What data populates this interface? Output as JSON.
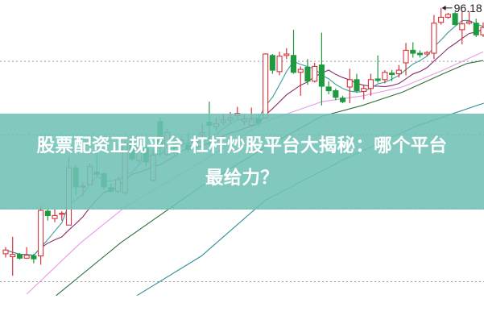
{
  "chart_data": {
    "type": "candlestick",
    "title": "",
    "high_label": "96.18",
    "grid": true,
    "grid_levels": [
      90,
      81.5,
      73,
      64.5
    ],
    "ylim": [
      59.6,
      97.1
    ],
    "colors": {
      "up": "#d8343d",
      "down": "#1f9a3e",
      "ma5": "#3a9b9a",
      "ma10": "#8a2a6e",
      "ma20": "#e79be6",
      "ma30": "#2f6e3a",
      "ma60": "#2c8f95",
      "grid": "#999999"
    },
    "candles": [
      [
        67.73,
        68.16,
        68.5,
        67.31
      ],
      [
        67.39,
        67.65,
        69.69,
        65.18
      ],
      [
        67.65,
        67.22,
        67.82,
        67.06
      ],
      [
        67.22,
        67.56,
        68.5,
        67.14
      ],
      [
        67.48,
        67.14,
        67.73,
        66.63
      ],
      [
        67.48,
        72.75,
        73.34,
        66.46
      ],
      [
        72.66,
        72.15,
        72.92,
        71.56
      ],
      [
        71.81,
        72.15,
        72.92,
        71.39
      ],
      [
        72.33,
        72.41,
        72.66,
        71.56
      ],
      [
        71.05,
        77.68,
        78.95,
        71.05
      ],
      [
        77.68,
        75.47,
        78.02,
        74.45
      ],
      [
        75.47,
        75.56,
        75.98,
        74.28
      ],
      [
        75.72,
        77.85,
        78.19,
        75.64
      ],
      [
        77.17,
        76.92,
        80.65,
        76.66
      ],
      [
        77.0,
        75.47,
        77.17,
        75.13
      ],
      [
        75.38,
        74.96,
        75.81,
        74.79
      ],
      [
        74.96,
        76.32,
        76.66,
        74.62
      ],
      [
        74.79,
        80.48,
        80.74,
        74.53
      ],
      [
        80.91,
        78.7,
        81.25,
        78.36
      ],
      [
        78.53,
        79.97,
        80.4,
        78.19
      ],
      [
        79.97,
        78.36,
        80.23,
        77.85
      ],
      [
        76.24,
        79.13,
        79.8,
        76.06
      ],
      [
        83.04,
        80.06,
        83.46,
        79.04
      ],
      [
        79.21,
        81.76,
        82.18,
        79.04
      ],
      [
        80.65,
        80.14,
        80.91,
        79.21
      ],
      [
        80.4,
        80.91,
        81.33,
        80.06
      ],
      [
        80.31,
        79.8,
        81.76,
        79.47
      ],
      [
        80.23,
        80.74,
        81.08,
        79.89
      ],
      [
        81.5,
        81.76,
        82.78,
        80.91
      ],
      [
        82.95,
        82.61,
        85.33,
        80.06
      ],
      [
        82.44,
        82.78,
        83.46,
        81.93
      ],
      [
        82.95,
        83.2,
        83.88,
        82.61
      ],
      [
        83.2,
        83.46,
        84.14,
        82.78
      ],
      [
        83.71,
        83.97,
        84.73,
        83.29
      ],
      [
        83.04,
        83.29,
        83.8,
        82.61
      ],
      [
        82.61,
        83.2,
        84.65,
        82.44
      ],
      [
        83.37,
        82.87,
        83.88,
        82.61
      ],
      [
        83.46,
        90.85,
        90.94,
        83.29
      ],
      [
        90.68,
        88.98,
        90.85,
        88.56
      ],
      [
        88.81,
        90.6,
        91.11,
        88.39
      ],
      [
        90.68,
        90.85,
        91.53,
        90.26
      ],
      [
        90.68,
        88.73,
        93.66,
        88.56
      ],
      [
        88.73,
        89.07,
        89.41,
        86.01
      ],
      [
        89.32,
        87.71,
        90.26,
        87.28
      ],
      [
        87.71,
        89.41,
        89.83,
        87.54
      ],
      [
        89.58,
        87.12,
        93.32,
        84.9
      ],
      [
        87.03,
        86.6,
        87.71,
        86.18
      ],
      [
        86.6,
        85.84,
        86.86,
        85.5
      ],
      [
        85.75,
        85.33,
        86.01,
        85.16
      ],
      [
        87.03,
        87.88,
        89.15,
        85.16
      ],
      [
        87.88,
        86.6,
        88.56,
        86.35
      ],
      [
        86.52,
        86.86,
        87.28,
        85.58
      ],
      [
        86.86,
        87.88,
        88.56,
        86.01
      ],
      [
        87.96,
        87.79,
        90.68,
        87.54
      ],
      [
        87.88,
        88.73,
        88.98,
        87.45
      ],
      [
        88.64,
        88.47,
        88.98,
        87.71
      ],
      [
        88.56,
        88.98,
        89.58,
        88.13
      ],
      [
        89.83,
        91.28,
        92.13,
        88.39
      ],
      [
        91.28,
        90.94,
        92.21,
        90.43
      ],
      [
        90.94,
        90.77,
        91.28,
        90.43
      ],
      [
        90.85,
        91.02,
        91.19,
        90.6
      ],
      [
        90.94,
        94.42,
        95.36,
        90.26
      ],
      [
        94.51,
        95.1,
        96.18,
        94.25
      ],
      [
        95.1,
        95.44,
        95.61,
        94.93
      ],
      [
        95.53,
        94.25,
        95.7,
        94.17
      ],
      [
        93.66,
        94.34,
        95.78,
        91.96
      ],
      [
        94.42,
        94.59,
        95.78,
        94.25
      ],
      [
        94.42,
        93.07,
        94.93,
        92.81
      ],
      [
        93.07,
        93.91,
        94.51,
        92.81
      ]
    ],
    "ma20": [
      [
        3,
        63.06
      ],
      [
        10.7,
        69.01
      ],
      [
        17.2,
        73.26
      ],
      [
        27.9,
        78.36
      ],
      [
        37,
        83.04
      ],
      [
        45,
        85.33
      ],
      [
        50.8,
        86.01
      ],
      [
        56.5,
        87.03
      ],
      [
        62.3,
        88.98
      ],
      [
        68,
        91.11
      ]
    ],
    "ma30": [
      [
        7.2,
        62.89
      ],
      [
        16.4,
        69.01
      ],
      [
        27.9,
        75.56
      ],
      [
        37,
        80.06
      ],
      [
        45,
        83.63
      ],
      [
        50.8,
        84.9
      ],
      [
        56.5,
        86.43
      ],
      [
        62.3,
        88.56
      ],
      [
        65.7,
        89.75
      ],
      [
        68,
        90.09
      ]
    ],
    "ma60": [
      [
        18.7,
        62.89
      ],
      [
        27.9,
        67.48
      ],
      [
        37,
        73.94
      ],
      [
        48.5,
        78.78
      ],
      [
        58.8,
        82.61
      ],
      [
        68.1,
        85.16
      ]
    ]
  },
  "banner": {
    "line1": "股票配资正规平台 杠杆炒股平台大揭秘：哪个平台",
    "line2": "最给力？"
  }
}
